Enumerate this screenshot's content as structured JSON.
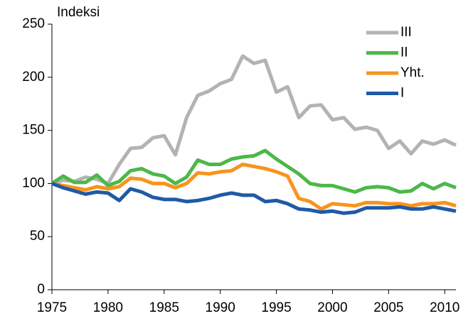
{
  "chart_data": {
    "type": "line",
    "y_label": "Indeksi",
    "x": [
      1975,
      1976,
      1977,
      1978,
      1979,
      1980,
      1981,
      1982,
      1983,
      1984,
      1985,
      1986,
      1987,
      1988,
      1989,
      1990,
      1991,
      1992,
      1993,
      1994,
      1995,
      1996,
      1997,
      1998,
      1999,
      2000,
      2001,
      2002,
      2003,
      2004,
      2005,
      2006,
      2007,
      2008,
      2009,
      2010,
      2011
    ],
    "series": [
      {
        "name": "III",
        "color": "#b3b3b3",
        "values": [
          100,
          103,
          102,
          106,
          104,
          100,
          118,
          133,
          134,
          143,
          145,
          127,
          162,
          183,
          187,
          194,
          198,
          220,
          213,
          216,
          186,
          191,
          162,
          173,
          174,
          160,
          162,
          151,
          153,
          150,
          133,
          140,
          128,
          140,
          137,
          141,
          136
        ]
      },
      {
        "name": "II",
        "color": "#4cb848",
        "values": [
          100,
          107,
          101,
          101,
          108,
          98,
          102,
          112,
          114,
          109,
          107,
          100,
          106,
          122,
          118,
          118,
          123,
          125,
          126,
          131,
          123,
          116,
          109,
          100,
          98,
          98,
          95,
          92,
          96,
          97,
          96,
          92,
          93,
          100,
          95,
          100,
          96
        ]
      },
      {
        "name": "Yht.",
        "color": "#f7941d",
        "values": [
          100,
          98,
          96,
          94,
          97,
          95,
          97,
          105,
          104,
          100,
          100,
          96,
          100,
          110,
          109,
          111,
          112,
          118,
          116,
          114,
          111,
          107,
          86,
          83,
          76,
          81,
          80,
          79,
          82,
          82,
          81,
          81,
          79,
          81,
          81,
          82,
          79
        ]
      },
      {
        "name": "I",
        "color": "#1f5aa6",
        "values": [
          100,
          96,
          93,
          90,
          92,
          91,
          84,
          95,
          92,
          87,
          85,
          85,
          83,
          84,
          86,
          89,
          91,
          89,
          89,
          83,
          84,
          81,
          76,
          75,
          73,
          74,
          72,
          73,
          77,
          77,
          77,
          78,
          76,
          76,
          78,
          76,
          74
        ]
      }
    ],
    "xlim": [
      1975,
      2011
    ],
    "xticks": [
      1975,
      1980,
      1985,
      1990,
      1995,
      2000,
      2005,
      2010
    ],
    "ylim": [
      0,
      250
    ],
    "yticks": [
      0,
      50,
      100,
      150,
      200,
      250
    ],
    "legend": "top-right"
  }
}
